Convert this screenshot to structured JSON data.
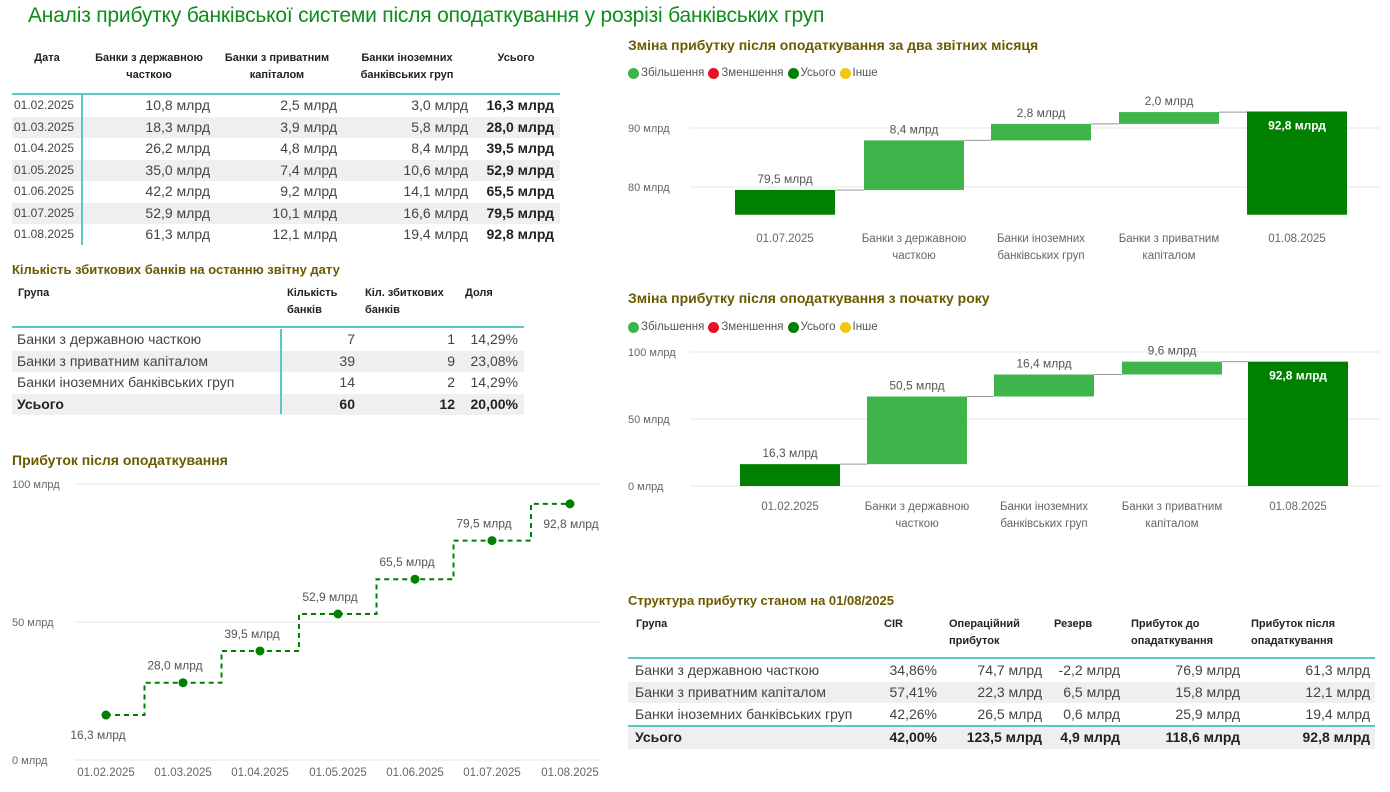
{
  "title": "Аналіз прибутку банківської системи після оподаткування у розрізі банківських груп",
  "table1": {
    "headers": [
      "Дата",
      "Банки з державною часткою",
      "Банки з приватним капіталом",
      "Банки іноземних банківських груп",
      "Усього"
    ],
    "rows": [
      [
        "01.02.2025",
        "10,8 млрд",
        "2,5 млрд",
        "3,0 млрд",
        "16,3 млрд"
      ],
      [
        "01.03.2025",
        "18,3 млрд",
        "3,9 млрд",
        "5,8 млрд",
        "28,0 млрд"
      ],
      [
        "01.04.2025",
        "26,2 млрд",
        "4,8 млрд",
        "8,4 млрд",
        "39,5 млрд"
      ],
      [
        "01.05.2025",
        "35,0 млрд",
        "7,4 млрд",
        "10,6 млрд",
        "52,9 млрд"
      ],
      [
        "01.06.2025",
        "42,2 млрд",
        "9,2 млрд",
        "14,1 млрд",
        "65,5 млрд"
      ],
      [
        "01.07.2025",
        "52,9 млрд",
        "10,1 млрд",
        "16,6 млрд",
        "79,5 млрд"
      ],
      [
        "01.08.2025",
        "61,3 млрд",
        "12,1 млрд",
        "19,4 млрд",
        "92,8 млрд"
      ]
    ]
  },
  "table2": {
    "title": "Кількість збиткових банків на останню звітну дату",
    "headers": [
      "Група",
      "Кількість банків",
      "Кіл. збиткових банків",
      "Доля"
    ],
    "rows": [
      [
        "Банки з державною часткою",
        "7",
        "1",
        "14,29%"
      ],
      [
        "Банки з приватним капіталом",
        "39",
        "9",
        "23,08%"
      ],
      [
        "Банки іноземних банківських груп",
        "14",
        "2",
        "14,29%"
      ]
    ],
    "total": [
      "Усього",
      "60",
      "12",
      "20,00%"
    ]
  },
  "table3": {
    "title": "Структура прибутку станом на 01/08/2025",
    "headers": [
      "Група",
      "CIR",
      "Операційний прибуток",
      "Резерв",
      "Прибуток до опадаткування",
      "Прибуток після опадаткування"
    ],
    "rows": [
      [
        "Банки з державною часткою",
        "34,86%",
        "74,7 млрд",
        "-2,2 млрд",
        "76,9 млрд",
        "61,3 млрд"
      ],
      [
        "Банки з приватним капіталом",
        "57,41%",
        "22,3 млрд",
        "6,5 млрд",
        "15,8 млрд",
        "12,1 млрд"
      ],
      [
        "Банки іноземних банківських груп",
        "42,26%",
        "26,5 млрд",
        "0,6 млрд",
        "25,9 млрд",
        "19,4 млрд"
      ]
    ],
    "total": [
      "Усього",
      "42,00%",
      "123,5 млрд",
      "4,9 млрд",
      "118,6 млрд",
      "92,8 млрд"
    ]
  },
  "legend": [
    {
      "label": "Збільшення",
      "color": "#3db54a"
    },
    {
      "label": "Зменшення",
      "color": "#e81123"
    },
    {
      "label": "Усього",
      "color": "#008000"
    },
    {
      "label": "Інше",
      "color": "#f2c80f"
    }
  ],
  "chart_data": [
    {
      "type": "waterfall",
      "title": "Зміна прибутку після оподаткування за два звітних місяця",
      "categories": [
        "01.07.2025",
        "Банки з державною часткою",
        "Банки іноземних банківських груп",
        "Банки з приватним капіталом",
        "01.08.2025"
      ],
      "values": [
        79.5,
        8.4,
        2.8,
        2.0,
        92.8
      ],
      "kinds": [
        "total",
        "increase",
        "increase",
        "increase",
        "total"
      ],
      "labels": [
        "79,5 млрд",
        "8,4 млрд",
        "2,8 млрд",
        "2,0 млрд",
        "92,8 млрд"
      ],
      "yticks": [
        80,
        90
      ],
      "ytick_labels": [
        "80 млрд",
        "90 млрд"
      ],
      "ylim": [
        75.3,
        95
      ],
      "grid": true,
      "legend": "top-left"
    },
    {
      "type": "waterfall",
      "title": "Зміна прибутку після оподаткування з початку року",
      "categories": [
        "01.02.2025",
        "Банки з державною часткою",
        "Банки іноземних банківських груп",
        "Банки з приватним капіталом",
        "01.08.2025"
      ],
      "values": [
        16.3,
        50.5,
        16.4,
        9.6,
        92.8
      ],
      "kinds": [
        "total",
        "increase",
        "increase",
        "increase",
        "total"
      ],
      "labels": [
        "16,3 млрд",
        "50,5 млрд",
        "16,4 млрд",
        "9,6 млрд",
        "92,8 млрд"
      ],
      "yticks": [
        0,
        50,
        100
      ],
      "ytick_labels": [
        "0 млрд",
        "50 млрд",
        "100 млрд"
      ],
      "ylim": [
        0,
        100
      ],
      "grid": true,
      "legend": "top-left"
    },
    {
      "type": "line",
      "title": "Прибуток після оподаткування",
      "style": "step-dashed",
      "x": [
        "01.02.2025",
        "01.03.2025",
        "01.04.2025",
        "01.05.2025",
        "01.06.2025",
        "01.07.2025",
        "01.08.2025"
      ],
      "values": [
        16.3,
        28.0,
        39.5,
        52.9,
        65.5,
        79.5,
        92.8
      ],
      "labels": [
        "16,3 млрд",
        "28,0 млрд",
        "39,5 млрд",
        "52,9 млрд",
        "65,5 млрд",
        "79,5 млрд",
        "92,8 млрд"
      ],
      "yticks": [
        0,
        50,
        100
      ],
      "ytick_labels": [
        "0 млрд",
        "50 млрд",
        "100 млрд"
      ],
      "ylim": [
        0,
        100
      ],
      "grid": true,
      "color": "#008000"
    }
  ]
}
